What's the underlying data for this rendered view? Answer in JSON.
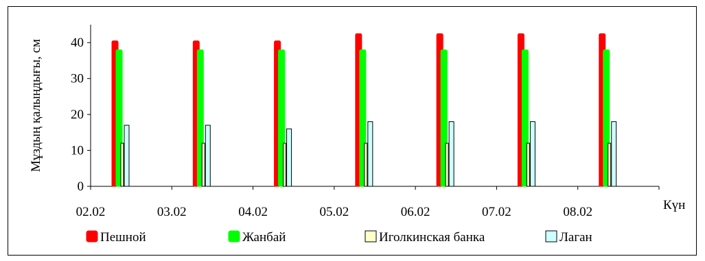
{
  "chart_data": {
    "type": "bar",
    "ylabel": "Мұздың қалыңдығы, см",
    "xlabel": "Күн",
    "ylim": [
      0,
      45
    ],
    "yticks": [
      0,
      10,
      20,
      30,
      40
    ],
    "categories": [
      "02.02",
      "03.02",
      "04.02",
      "05.02",
      "06.02",
      "07.02",
      "08.02"
    ],
    "series": [
      {
        "name": "Пешной",
        "color": "#ff0000",
        "values": [
          40.5,
          40.5,
          40.5,
          42.5,
          42.5,
          42.5,
          42.5
        ]
      },
      {
        "name": "Жанбай",
        "color": "#00ff00",
        "values": [
          38,
          38,
          38,
          38,
          38,
          38,
          38
        ]
      },
      {
        "name": "Иголкинская банка",
        "color": "#ffffcc",
        "values": [
          12,
          12,
          12,
          12,
          12,
          12,
          12
        ]
      },
      {
        "name": "Лаган",
        "color": "#ccffff",
        "values": [
          17,
          17,
          16,
          18,
          18,
          18,
          18
        ]
      }
    ],
    "legend_position": "bottom",
    "grid": false
  }
}
